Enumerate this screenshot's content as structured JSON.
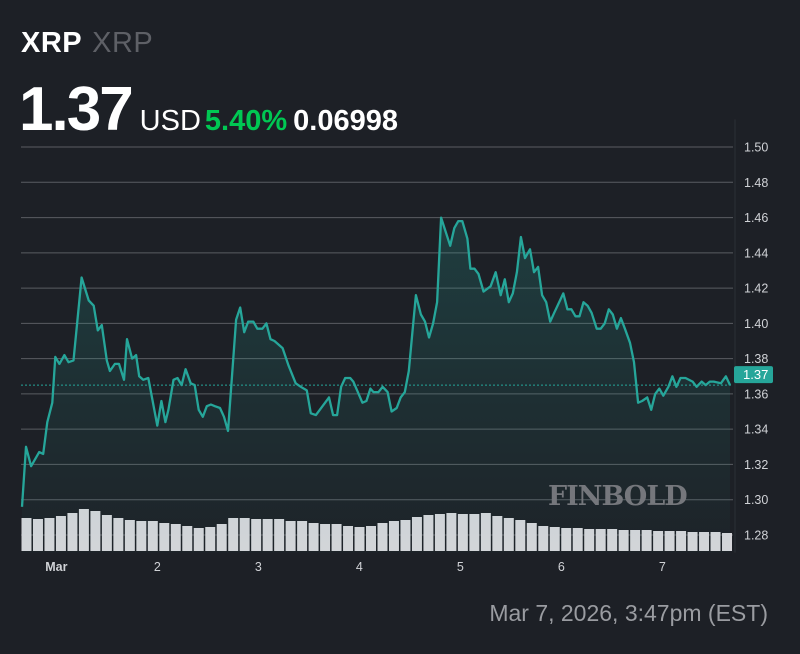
{
  "header": {
    "symbol": "XRP",
    "name": "XRP",
    "price": "1.37",
    "currency": "USD",
    "change_pct": "5.40%",
    "change_abs": "0.06998"
  },
  "timestamp": "Mar 7, 2026, 3:47pm (EST)",
  "watermark": "FINBOLD",
  "colors": {
    "background": "#1d2026",
    "line": "#26a69a",
    "positive": "#00c853",
    "volume": "#d6d6da",
    "grid": "#5a5c62"
  },
  "chart_data": {
    "type": "area",
    "title": "",
    "xlabel": "",
    "ylabel": "",
    "xlim": [
      0.65,
      7.7
    ],
    "ylim": [
      1.27,
      1.51
    ],
    "grid": true,
    "x_ticks": [
      {
        "value": 1,
        "label": "Mar"
      },
      {
        "value": 2,
        "label": "2"
      },
      {
        "value": 3,
        "label": "3"
      },
      {
        "value": 4,
        "label": "4"
      },
      {
        "value": 5,
        "label": "5"
      },
      {
        "value": 6,
        "label": "6"
      },
      {
        "value": 7,
        "label": "7"
      }
    ],
    "y_ticks": [
      "1.28",
      "1.30",
      "1.32",
      "1.34",
      "1.36",
      "1.38",
      "1.40",
      "1.42",
      "1.44",
      "1.46",
      "1.48",
      "1.50"
    ],
    "current_price": {
      "value": 1.365,
      "label": "1.37"
    },
    "x": [
      0.66,
      0.7,
      0.75,
      0.83,
      0.87,
      0.91,
      0.96,
      0.99,
      1.03,
      1.08,
      1.12,
      1.17,
      1.25,
      1.32,
      1.37,
      1.41,
      1.45,
      1.5,
      1.53,
      1.58,
      1.62,
      1.67,
      1.7,
      1.75,
      1.79,
      1.82,
      1.86,
      1.91,
      2.0,
      2.04,
      2.08,
      2.11,
      2.16,
      2.2,
      2.24,
      2.28,
      2.33,
      2.37,
      2.41,
      2.45,
      2.49,
      2.53,
      2.57,
      2.62,
      2.66,
      2.7,
      2.78,
      2.82,
      2.86,
      2.9,
      2.95,
      2.99,
      3.04,
      3.08,
      3.12,
      3.16,
      3.24,
      3.3,
      3.37,
      3.42,
      3.48,
      3.52,
      3.57,
      3.7,
      3.74,
      3.78,
      3.82,
      3.86,
      3.91,
      3.94,
      4.03,
      4.07,
      4.11,
      4.14,
      4.19,
      4.23,
      4.28,
      4.32,
      4.37,
      4.41,
      4.45,
      4.49,
      4.53,
      4.56,
      4.61,
      4.65,
      4.69,
      4.73,
      4.77,
      4.81,
      4.86,
      4.9,
      4.94,
      4.98,
      5.02,
      5.07,
      5.1,
      5.14,
      5.18,
      5.23,
      5.3,
      5.35,
      5.4,
      5.44,
      5.48,
      5.52,
      5.56,
      5.6,
      5.64,
      5.69,
      5.73,
      5.77,
      5.81,
      5.85,
      5.89,
      5.93,
      6.02,
      6.06,
      6.1,
      6.14,
      6.18,
      6.22,
      6.26,
      6.3,
      6.35,
      6.39,
      6.43,
      6.47,
      6.51,
      6.55,
      6.59,
      6.63,
      6.68,
      6.72,
      6.76,
      6.8,
      6.85,
      6.89,
      6.93,
      6.97,
      7.01,
      7.06,
      7.1,
      7.14,
      7.18,
      7.23,
      7.3,
      7.34,
      7.39,
      7.43,
      7.47,
      7.51,
      7.58,
      7.63,
      7.67
    ],
    "y": [
      1.296,
      1.33,
      1.319,
      1.327,
      1.326,
      1.344,
      1.355,
      1.381,
      1.377,
      1.382,
      1.378,
      1.379,
      1.426,
      1.413,
      1.41,
      1.396,
      1.399,
      1.379,
      1.373,
      1.377,
      1.377,
      1.368,
      1.391,
      1.38,
      1.382,
      1.37,
      1.368,
      1.369,
      1.342,
      1.356,
      1.344,
      1.351,
      1.368,
      1.369,
      1.365,
      1.374,
      1.366,
      1.365,
      1.351,
      1.347,
      1.353,
      1.354,
      1.353,
      1.352,
      1.347,
      1.339,
      1.402,
      1.409,
      1.395,
      1.401,
      1.401,
      1.397,
      1.397,
      1.4,
      1.391,
      1.39,
      1.386,
      1.376,
      1.366,
      1.364,
      1.362,
      1.349,
      1.348,
      1.358,
      1.348,
      1.348,
      1.364,
      1.369,
      1.369,
      1.367,
      1.355,
      1.356,
      1.363,
      1.361,
      1.361,
      1.364,
      1.361,
      1.35,
      1.352,
      1.358,
      1.361,
      1.373,
      1.398,
      1.416,
      1.405,
      1.401,
      1.392,
      1.4,
      1.412,
      1.46,
      1.451,
      1.444,
      1.454,
      1.458,
      1.458,
      1.448,
      1.431,
      1.431,
      1.428,
      1.418,
      1.421,
      1.429,
      1.416,
      1.425,
      1.412,
      1.417,
      1.429,
      1.449,
      1.437,
      1.442,
      1.429,
      1.432,
      1.416,
      1.412,
      1.401,
      1.406,
      1.417,
      1.408,
      1.408,
      1.404,
      1.404,
      1.412,
      1.41,
      1.406,
      1.397,
      1.397,
      1.4,
      1.408,
      1.405,
      1.397,
      1.403,
      1.397,
      1.389,
      1.378,
      1.355,
      1.356,
      1.358,
      1.351,
      1.36,
      1.363,
      1.359,
      1.364,
      1.37,
      1.364,
      1.369,
      1.369,
      1.367,
      1.364,
      1.367,
      1.365,
      1.367,
      1.367,
      1.366,
      1.37,
      1.365
    ],
    "volume_relative": [
      33,
      32,
      33,
      35,
      38,
      42,
      40,
      36,
      33,
      31,
      30,
      30,
      28,
      27,
      25,
      23,
      24,
      27,
      33,
      33,
      32,
      32,
      32,
      30,
      30,
      28,
      27,
      27,
      25,
      24,
      25,
      28,
      30,
      31,
      34,
      36,
      37,
      38,
      37,
      37,
      38,
      35,
      33,
      31,
      28,
      25,
      24,
      23,
      23,
      22,
      22,
      22,
      21,
      21,
      21,
      20,
      20,
      20,
      19,
      19,
      19,
      18
    ]
  }
}
